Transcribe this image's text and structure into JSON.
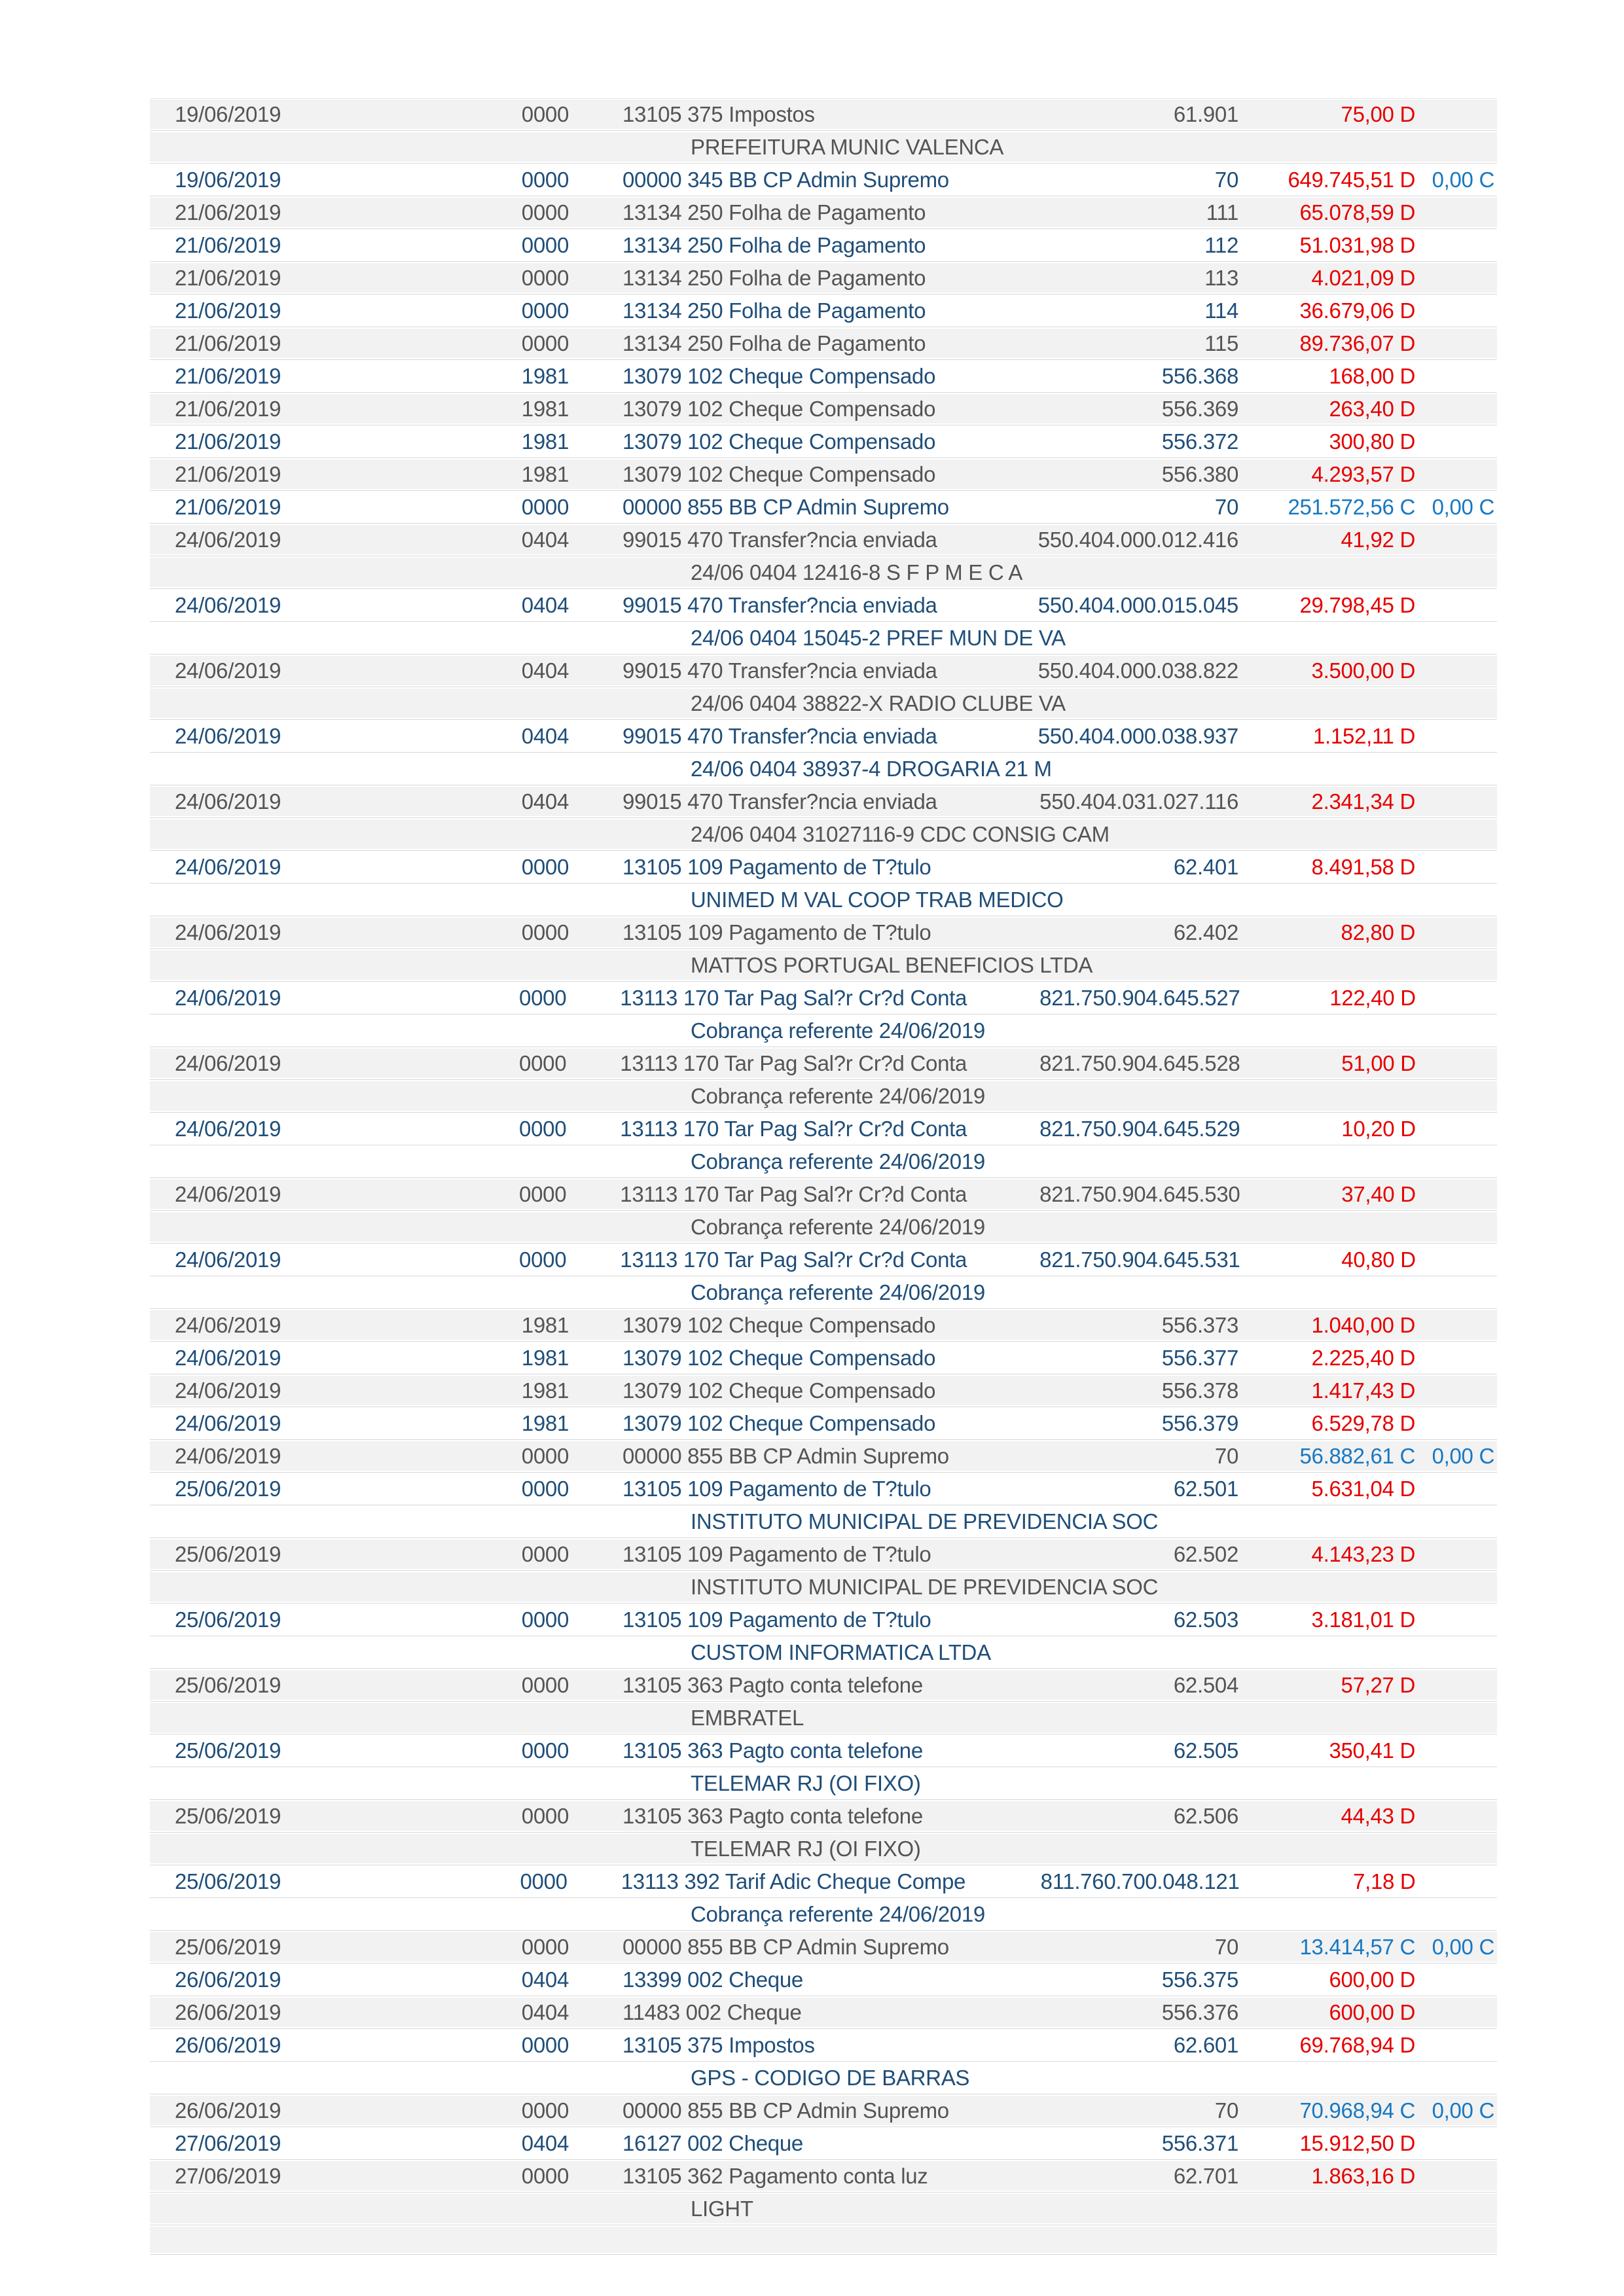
{
  "page": {
    "type": "bank-statement-page",
    "language": "pt-BR"
  },
  "colors": {
    "row_bg_shaded": "#f2f2f2",
    "row_bg_plain": "#ffffff",
    "text_shaded": "#545454",
    "text_plain": "#1f4e79",
    "debit": "#e60000",
    "credit": "#1778c2",
    "separator": "#d8d8d8",
    "page_bg": "#ffffff"
  },
  "table": {
    "columns": [
      "date",
      "agency",
      "description",
      "document",
      "amount",
      "balance"
    ],
    "rows": [
      {
        "kind": "entry",
        "shade": true,
        "date": "19/06/2019",
        "agency": "0000",
        "description": "13105 375 Impostos",
        "document": "61.901",
        "amount": "75,00",
        "amount_dc": "D",
        "balance": "",
        "balance_dc": ""
      },
      {
        "kind": "detail",
        "shade": true,
        "text": "PREFEITURA MUNIC VALENCA"
      },
      {
        "kind": "entry",
        "shade": false,
        "date": "19/06/2019",
        "agency": "0000",
        "description": "00000 345 BB CP Admin Supremo",
        "document": "70",
        "amount": "649.745,51",
        "amount_dc": "D",
        "balance": "0,00",
        "balance_dc": "C"
      },
      {
        "kind": "entry",
        "shade": true,
        "date": "21/06/2019",
        "agency": "0000",
        "description": "13134 250 Folha de Pagamento",
        "document": "111",
        "amount": "65.078,59",
        "amount_dc": "D",
        "balance": "",
        "balance_dc": ""
      },
      {
        "kind": "entry",
        "shade": false,
        "date": "21/06/2019",
        "agency": "0000",
        "description": "13134 250 Folha de Pagamento",
        "document": "112",
        "amount": "51.031,98",
        "amount_dc": "D",
        "balance": "",
        "balance_dc": ""
      },
      {
        "kind": "entry",
        "shade": true,
        "date": "21/06/2019",
        "agency": "0000",
        "description": "13134 250 Folha de Pagamento",
        "document": "113",
        "amount": "4.021,09",
        "amount_dc": "D",
        "balance": "",
        "balance_dc": ""
      },
      {
        "kind": "entry",
        "shade": false,
        "date": "21/06/2019",
        "agency": "0000",
        "description": "13134 250 Folha de Pagamento",
        "document": "114",
        "amount": "36.679,06",
        "amount_dc": "D",
        "balance": "",
        "balance_dc": ""
      },
      {
        "kind": "entry",
        "shade": true,
        "date": "21/06/2019",
        "agency": "0000",
        "description": "13134 250 Folha de Pagamento",
        "document": "115",
        "amount": "89.736,07",
        "amount_dc": "D",
        "balance": "",
        "balance_dc": ""
      },
      {
        "kind": "entry",
        "shade": false,
        "date": "21/06/2019",
        "agency": "1981",
        "description": "13079 102 Cheque Compensado",
        "document": "556.368",
        "amount": "168,00",
        "amount_dc": "D",
        "balance": "",
        "balance_dc": ""
      },
      {
        "kind": "entry",
        "shade": true,
        "date": "21/06/2019",
        "agency": "1981",
        "description": "13079 102 Cheque Compensado",
        "document": "556.369",
        "amount": "263,40",
        "amount_dc": "D",
        "balance": "",
        "balance_dc": ""
      },
      {
        "kind": "entry",
        "shade": false,
        "date": "21/06/2019",
        "agency": "1981",
        "description": "13079 102 Cheque Compensado",
        "document": "556.372",
        "amount": "300,80",
        "amount_dc": "D",
        "balance": "",
        "balance_dc": ""
      },
      {
        "kind": "entry",
        "shade": true,
        "date": "21/06/2019",
        "agency": "1981",
        "description": "13079 102 Cheque Compensado",
        "document": "556.380",
        "amount": "4.293,57",
        "amount_dc": "D",
        "balance": "",
        "balance_dc": ""
      },
      {
        "kind": "entry",
        "shade": false,
        "date": "21/06/2019",
        "agency": "0000",
        "description": "00000 855 BB CP Admin Supremo",
        "document": "70",
        "amount": "251.572,56",
        "amount_dc": "C",
        "balance": "0,00",
        "balance_dc": "C"
      },
      {
        "kind": "entry",
        "shade": true,
        "date": "24/06/2019",
        "agency": "0404",
        "description": "99015 470 Transfer?ncia enviada",
        "document": "550.404.000.012.416",
        "amount": "41,92",
        "amount_dc": "D",
        "balance": "",
        "balance_dc": ""
      },
      {
        "kind": "detail",
        "shade": true,
        "text": "24/06 0404 12416-8 S F P M E C A"
      },
      {
        "kind": "entry",
        "shade": false,
        "date": "24/06/2019",
        "agency": "0404",
        "description": "99015 470 Transfer?ncia enviada",
        "document": "550.404.000.015.045",
        "amount": "29.798,45",
        "amount_dc": "D",
        "balance": "",
        "balance_dc": ""
      },
      {
        "kind": "detail",
        "shade": false,
        "text": "24/06 0404 15045-2 PREF MUN DE VA"
      },
      {
        "kind": "entry",
        "shade": true,
        "date": "24/06/2019",
        "agency": "0404",
        "description": "99015 470 Transfer?ncia enviada",
        "document": "550.404.000.038.822",
        "amount": "3.500,00",
        "amount_dc": "D",
        "balance": "",
        "balance_dc": ""
      },
      {
        "kind": "detail",
        "shade": true,
        "text": "24/06 0404 38822-X RADIO CLUBE VA"
      },
      {
        "kind": "entry",
        "shade": false,
        "date": "24/06/2019",
        "agency": "0404",
        "description": "99015 470 Transfer?ncia enviada",
        "document": "550.404.000.038.937",
        "amount": "1.152,11",
        "amount_dc": "D",
        "balance": "",
        "balance_dc": ""
      },
      {
        "kind": "detail",
        "shade": false,
        "text": "24/06 0404 38937-4 DROGARIA 21 M"
      },
      {
        "kind": "entry",
        "shade": true,
        "date": "24/06/2019",
        "agency": "0404",
        "description": "99015 470 Transfer?ncia enviada",
        "document": "550.404.031.027.116",
        "amount": "2.341,34",
        "amount_dc": "D",
        "balance": "",
        "balance_dc": ""
      },
      {
        "kind": "detail",
        "shade": true,
        "text": "24/06 0404 31027116-9 CDC CONSIG CAM"
      },
      {
        "kind": "entry",
        "shade": false,
        "date": "24/06/2019",
        "agency": "0000",
        "description": "13105 109 Pagamento de T?tulo",
        "document": "62.401",
        "amount": "8.491,58",
        "amount_dc": "D",
        "balance": "",
        "balance_dc": ""
      },
      {
        "kind": "detail",
        "shade": false,
        "text": "UNIMED M VAL COOP TRAB MEDICO"
      },
      {
        "kind": "entry",
        "shade": true,
        "date": "24/06/2019",
        "agency": "0000",
        "description": "13105 109 Pagamento de T?tulo",
        "document": "62.402",
        "amount": "82,80",
        "amount_dc": "D",
        "balance": "",
        "balance_dc": ""
      },
      {
        "kind": "detail",
        "shade": true,
        "text": "MATTOS PORTUGAL BENEFICIOS LTDA"
      },
      {
        "kind": "entry",
        "shade": false,
        "date": "24/06/2019",
        "agency": "0000",
        "description": "13113 170 Tar Pag Sal?r Cr?d Conta",
        "document": "821.750.904.645.527",
        "amount": "122,40",
        "amount_dc": "D",
        "balance": "",
        "balance_dc": ""
      },
      {
        "kind": "detail",
        "shade": false,
        "text": "Cobrança referente 24/06/2019"
      },
      {
        "kind": "entry",
        "shade": true,
        "date": "24/06/2019",
        "agency": "0000",
        "description": "13113 170 Tar Pag Sal?r Cr?d Conta",
        "document": "821.750.904.645.528",
        "amount": "51,00",
        "amount_dc": "D",
        "balance": "",
        "balance_dc": ""
      },
      {
        "kind": "detail",
        "shade": true,
        "text": "Cobrança referente 24/06/2019"
      },
      {
        "kind": "entry",
        "shade": false,
        "date": "24/06/2019",
        "agency": "0000",
        "description": "13113 170 Tar Pag Sal?r Cr?d Conta",
        "document": "821.750.904.645.529",
        "amount": "10,20",
        "amount_dc": "D",
        "balance": "",
        "balance_dc": ""
      },
      {
        "kind": "detail",
        "shade": false,
        "text": "Cobrança referente 24/06/2019"
      },
      {
        "kind": "entry",
        "shade": true,
        "date": "24/06/2019",
        "agency": "0000",
        "description": "13113 170 Tar Pag Sal?r Cr?d Conta",
        "document": "821.750.904.645.530",
        "amount": "37,40",
        "amount_dc": "D",
        "balance": "",
        "balance_dc": ""
      },
      {
        "kind": "detail",
        "shade": true,
        "text": "Cobrança referente 24/06/2019"
      },
      {
        "kind": "entry",
        "shade": false,
        "date": "24/06/2019",
        "agency": "0000",
        "description": "13113 170 Tar Pag Sal?r Cr?d Conta",
        "document": "821.750.904.645.531",
        "amount": "40,80",
        "amount_dc": "D",
        "balance": "",
        "balance_dc": ""
      },
      {
        "kind": "detail",
        "shade": false,
        "text": "Cobrança referente 24/06/2019"
      },
      {
        "kind": "entry",
        "shade": true,
        "date": "24/06/2019",
        "agency": "1981",
        "description": "13079 102 Cheque Compensado",
        "document": "556.373",
        "amount": "1.040,00",
        "amount_dc": "D",
        "balance": "",
        "balance_dc": ""
      },
      {
        "kind": "entry",
        "shade": false,
        "date": "24/06/2019",
        "agency": "1981",
        "description": "13079 102 Cheque Compensado",
        "document": "556.377",
        "amount": "2.225,40",
        "amount_dc": "D",
        "balance": "",
        "balance_dc": ""
      },
      {
        "kind": "entry",
        "shade": true,
        "date": "24/06/2019",
        "agency": "1981",
        "description": "13079 102 Cheque Compensado",
        "document": "556.378",
        "amount": "1.417,43",
        "amount_dc": "D",
        "balance": "",
        "balance_dc": ""
      },
      {
        "kind": "entry",
        "shade": false,
        "date": "24/06/2019",
        "agency": "1981",
        "description": "13079 102 Cheque Compensado",
        "document": "556.379",
        "amount": "6.529,78",
        "amount_dc": "D",
        "balance": "",
        "balance_dc": ""
      },
      {
        "kind": "entry",
        "shade": true,
        "date": "24/06/2019",
        "agency": "0000",
        "description": "00000 855 BB CP Admin Supremo",
        "document": "70",
        "amount": "56.882,61",
        "amount_dc": "C",
        "balance": "0,00",
        "balance_dc": "C"
      },
      {
        "kind": "entry",
        "shade": false,
        "date": "25/06/2019",
        "agency": "0000",
        "description": "13105 109 Pagamento de T?tulo",
        "document": "62.501",
        "amount": "5.631,04",
        "amount_dc": "D",
        "balance": "",
        "balance_dc": ""
      },
      {
        "kind": "detail",
        "shade": false,
        "text": "INSTITUTO MUNICIPAL DE PREVIDENCIA SOC"
      },
      {
        "kind": "entry",
        "shade": true,
        "date": "25/06/2019",
        "agency": "0000",
        "description": "13105 109 Pagamento de T?tulo",
        "document": "62.502",
        "amount": "4.143,23",
        "amount_dc": "D",
        "balance": "",
        "balance_dc": ""
      },
      {
        "kind": "detail",
        "shade": true,
        "text": "INSTITUTO MUNICIPAL DE PREVIDENCIA SOC"
      },
      {
        "kind": "entry",
        "shade": false,
        "date": "25/06/2019",
        "agency": "0000",
        "description": "13105 109 Pagamento de T?tulo",
        "document": "62.503",
        "amount": "3.181,01",
        "amount_dc": "D",
        "balance": "",
        "balance_dc": ""
      },
      {
        "kind": "detail",
        "shade": false,
        "text": "CUSTOM INFORMATICA LTDA"
      },
      {
        "kind": "entry",
        "shade": true,
        "date": "25/06/2019",
        "agency": "0000",
        "description": "13105 363 Pagto conta telefone",
        "document": "62.504",
        "amount": "57,27",
        "amount_dc": "D",
        "balance": "",
        "balance_dc": ""
      },
      {
        "kind": "detail",
        "shade": true,
        "text": "EMBRATEL"
      },
      {
        "kind": "entry",
        "shade": false,
        "date": "25/06/2019",
        "agency": "0000",
        "description": "13105 363 Pagto conta telefone",
        "document": "62.505",
        "amount": "350,41",
        "amount_dc": "D",
        "balance": "",
        "balance_dc": ""
      },
      {
        "kind": "detail",
        "shade": false,
        "text": "TELEMAR RJ (OI FIXO)"
      },
      {
        "kind": "entry",
        "shade": true,
        "date": "25/06/2019",
        "agency": "0000",
        "description": "13105 363 Pagto conta telefone",
        "document": "62.506",
        "amount": "44,43",
        "amount_dc": "D",
        "balance": "",
        "balance_dc": ""
      },
      {
        "kind": "detail",
        "shade": true,
        "text": "TELEMAR RJ (OI FIXO)"
      },
      {
        "kind": "entry",
        "shade": false,
        "date": "25/06/2019",
        "agency": "0000",
        "description": "13113 392 Tarif Adic Cheque Compe",
        "document": "811.760.700.048.121",
        "amount": "7,18",
        "amount_dc": "D",
        "balance": "",
        "balance_dc": ""
      },
      {
        "kind": "detail",
        "shade": false,
        "text": "Cobrança referente 24/06/2019"
      },
      {
        "kind": "entry",
        "shade": true,
        "date": "25/06/2019",
        "agency": "0000",
        "description": "00000 855 BB CP Admin Supremo",
        "document": "70",
        "amount": "13.414,57",
        "amount_dc": "C",
        "balance": "0,00",
        "balance_dc": "C"
      },
      {
        "kind": "entry",
        "shade": false,
        "date": "26/06/2019",
        "agency": "0404",
        "description": "13399 002 Cheque",
        "document": "556.375",
        "amount": "600,00",
        "amount_dc": "D",
        "balance": "",
        "balance_dc": ""
      },
      {
        "kind": "entry",
        "shade": true,
        "date": "26/06/2019",
        "agency": "0404",
        "description": "11483 002 Cheque",
        "document": "556.376",
        "amount": "600,00",
        "amount_dc": "D",
        "balance": "",
        "balance_dc": ""
      },
      {
        "kind": "entry",
        "shade": false,
        "date": "26/06/2019",
        "agency": "0000",
        "description": "13105 375 Impostos",
        "document": "62.601",
        "amount": "69.768,94",
        "amount_dc": "D",
        "balance": "",
        "balance_dc": ""
      },
      {
        "kind": "detail",
        "shade": false,
        "text": "GPS - CODIGO DE BARRAS"
      },
      {
        "kind": "entry",
        "shade": true,
        "date": "26/06/2019",
        "agency": "0000",
        "description": "00000 855 BB CP Admin Supremo",
        "document": "70",
        "amount": "70.968,94",
        "amount_dc": "C",
        "balance": "0,00",
        "balance_dc": "C"
      },
      {
        "kind": "entry",
        "shade": false,
        "date": "27/06/2019",
        "agency": "0404",
        "description": "16127 002 Cheque",
        "document": "556.371",
        "amount": "15.912,50",
        "amount_dc": "D",
        "balance": "",
        "balance_dc": ""
      },
      {
        "kind": "entry",
        "shade": true,
        "date": "27/06/2019",
        "agency": "0000",
        "description": "13105 362 Pagamento conta luz",
        "document": "62.701",
        "amount": "1.863,16",
        "amount_dc": "D",
        "balance": "",
        "balance_dc": ""
      },
      {
        "kind": "detail",
        "shade": true,
        "text": "LIGHT"
      },
      {
        "kind": "empty",
        "shade": true
      }
    ]
  }
}
